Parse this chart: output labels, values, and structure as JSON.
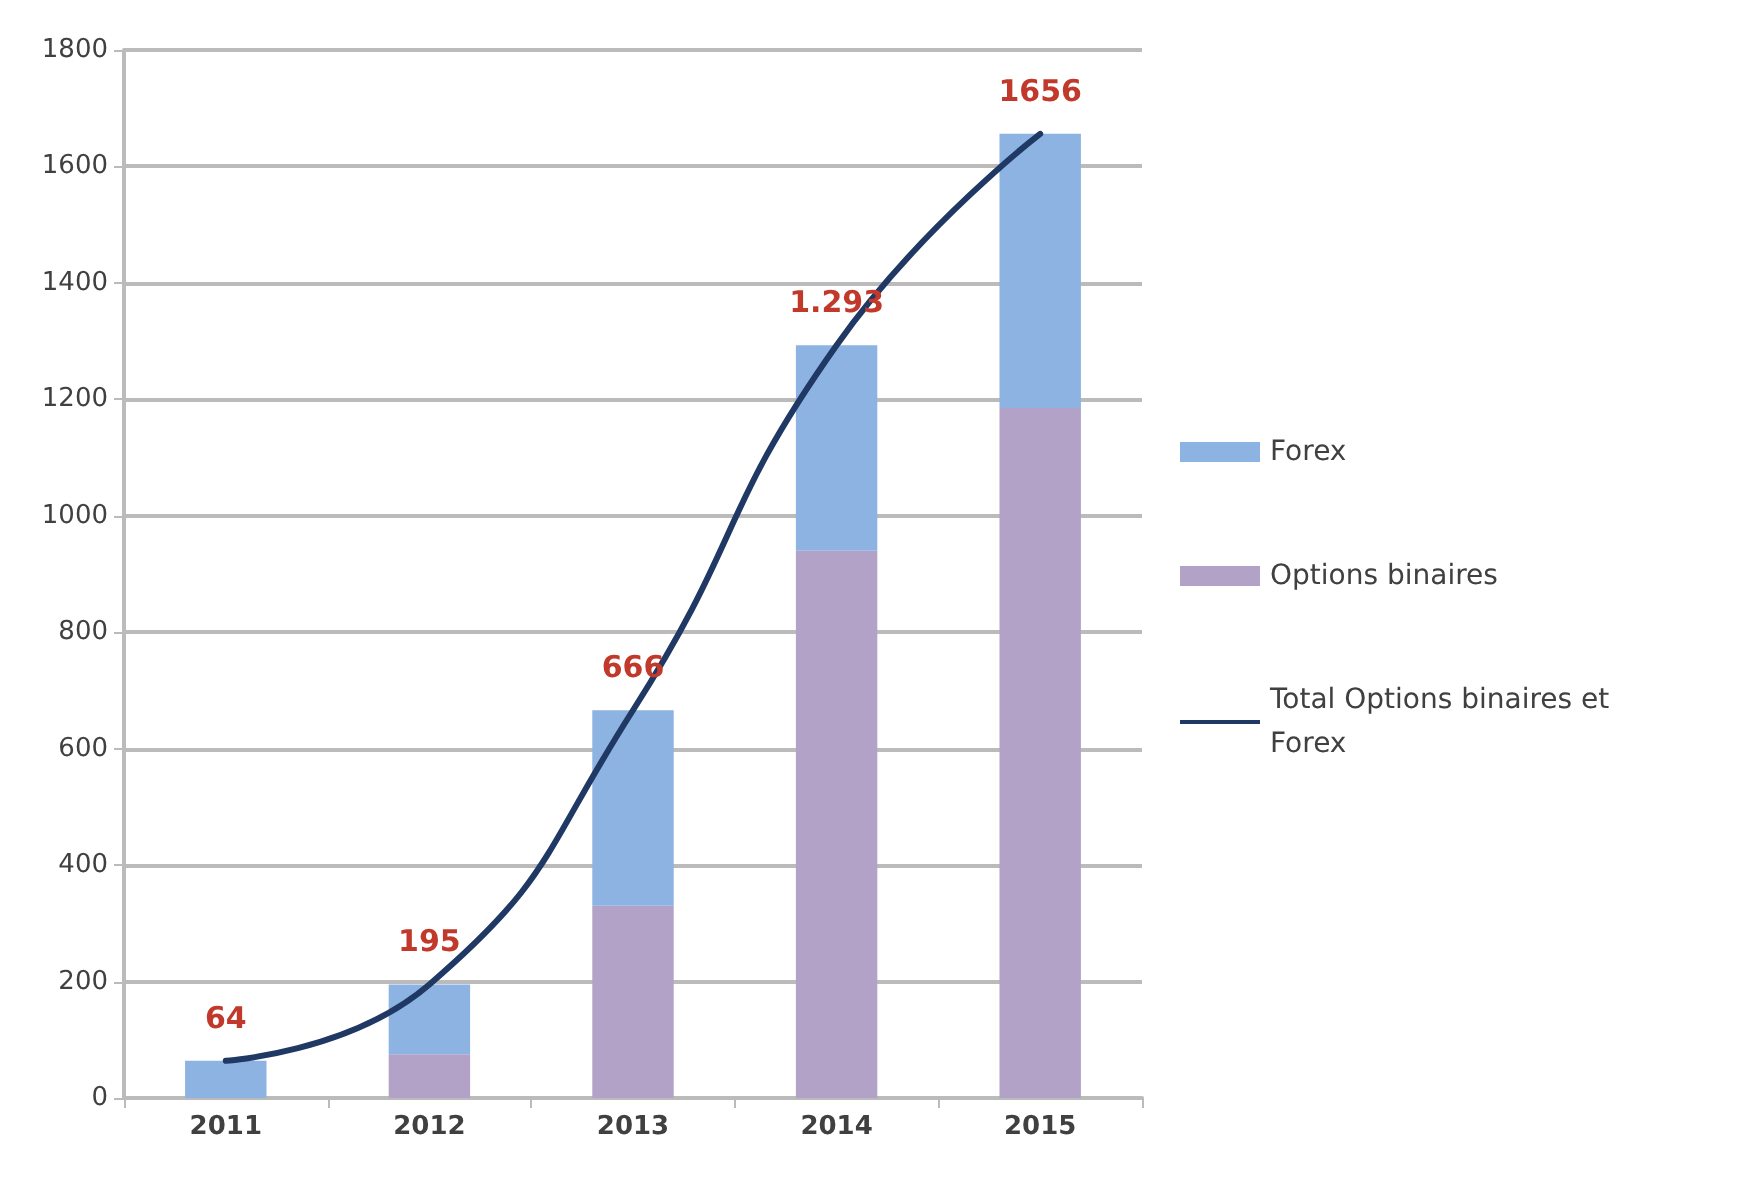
{
  "chart_data": {
    "type": "bar",
    "stacked": true,
    "categories": [
      "2011",
      "2012",
      "2013",
      "2014",
      "2015"
    ],
    "series": [
      {
        "name": "Options binaires",
        "color": "#b3a2c7",
        "values": [
          0,
          75,
          330,
          940,
          1185
        ]
      },
      {
        "name": "Forex",
        "color": "#8db3e2",
        "values": [
          64,
          120,
          336,
          353,
          471
        ]
      },
      {
        "name": "Total Options binaires et Forex",
        "type": "line",
        "color": "#1f3864",
        "values": [
          64,
          195,
          666,
          1293,
          1656
        ],
        "value_labels": [
          "64",
          "195",
          "666",
          "1.293",
          "1656"
        ]
      }
    ],
    "ylim": [
      0,
      1800
    ],
    "yticks": [
      0,
      200,
      400,
      600,
      800,
      1000,
      1200,
      1400,
      1600,
      1800
    ],
    "grid": "y",
    "legend": "right",
    "marker": "none"
  }
}
